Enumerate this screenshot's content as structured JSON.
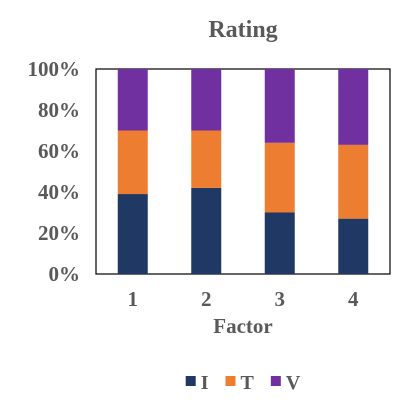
{
  "chart_data": {
    "type": "bar",
    "stacked": true,
    "title": "Rating",
    "xlabel": "Factor",
    "ylabel": "",
    "categories": [
      "1",
      "2",
      "3",
      "4"
    ],
    "ylim": [
      0,
      100
    ],
    "yticks": [
      "0%",
      "20%",
      "40%",
      "60%",
      "80%",
      "100%"
    ],
    "series": [
      {
        "name": "I",
        "values": [
          39,
          42,
          30,
          27
        ],
        "color": "#203864"
      },
      {
        "name": "T",
        "values": [
          31,
          28,
          34,
          36
        ],
        "color": "#ED7D31"
      },
      {
        "name": "V",
        "values": [
          30,
          30,
          36,
          37
        ],
        "color": "#7030A0"
      }
    ],
    "legend": "bottom",
    "grid": false
  }
}
